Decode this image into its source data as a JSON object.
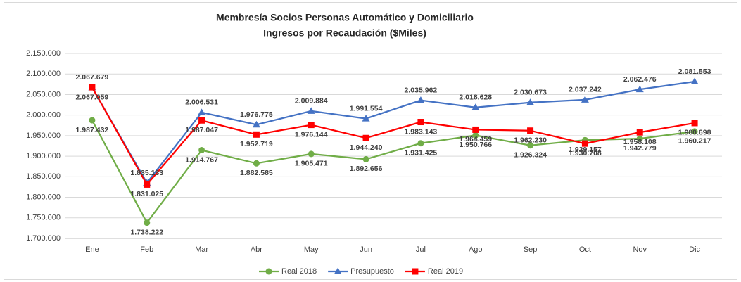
{
  "chart_data": {
    "type": "line",
    "title": "Membresía Socios Personas Automático y Domiciliario",
    "subtitle": "Ingresos por Recaudación ($Miles)",
    "categories": [
      "Ene",
      "Feb",
      "Mar",
      "Abr",
      "May",
      "Jun",
      "Jul",
      "Ago",
      "Sep",
      "Oct",
      "Nov",
      "Dic"
    ],
    "series": [
      {
        "name": "Real 2018",
        "color": "#70ad47",
        "marker": "circle",
        "values": [
          1987432,
          1738222,
          1914767,
          1882585,
          1905471,
          1892656,
          1931425,
          1950766,
          1926324,
          1939157,
          1942779,
          1960217
        ],
        "value_labels": [
          "1.987.432",
          "1.738.222",
          "1.914.767",
          "1.882.585",
          "1.905.471",
          "1.892.656",
          "1.931.425",
          "1.950.766",
          "1.926.324",
          "1.939.157",
          "1.942.779",
          "1.960.217"
        ]
      },
      {
        "name": "Presupuesto",
        "color": "#4472c4",
        "marker": "triangle",
        "values": [
          2067059,
          1835133,
          2006531,
          1976775,
          2009884,
          1991554,
          2035962,
          2018628,
          2030673,
          2037242,
          2062476,
          2081553
        ],
        "value_labels": [
          "2.067.059",
          "1.835.133",
          "2.006.531",
          "1.976.775",
          "2.009.884",
          "1.991.554",
          "2.035.962",
          "2.018.628",
          "2.030.673",
          "2.037.242",
          "2.062.476",
          "2.081.553"
        ]
      },
      {
        "name": "Real 2019",
        "color": "#ff0000",
        "marker": "square",
        "values": [
          2067679,
          1831025,
          1987047,
          1952719,
          1976144,
          1944240,
          1983143,
          1964459,
          1962230,
          1930708,
          1958108,
          1980698
        ],
        "value_labels": [
          "2.067.679",
          "1.831.025",
          "1.987.047",
          "1.952.719",
          "1.976.144",
          "1.944.240",
          "1.983.143",
          "1.964.459",
          "1.962.230",
          "1.930.708",
          "1.958.108",
          "1.980.698"
        ]
      }
    ],
    "ylim": [
      1700000,
      2150000
    ],
    "yticks": [
      {
        "value": 1700000,
        "label": "1.700.000"
      },
      {
        "value": 1750000,
        "label": "1.750.000"
      },
      {
        "value": 1800000,
        "label": "1.800.000"
      },
      {
        "value": 1850000,
        "label": "1.850.000"
      },
      {
        "value": 1900000,
        "label": "1.900.000"
      },
      {
        "value": 1950000,
        "label": "1.950.000"
      },
      {
        "value": 2000000,
        "label": "2.000.000"
      },
      {
        "value": 2050000,
        "label": "2.050.000"
      },
      {
        "value": 2100000,
        "label": "2.100.000"
      },
      {
        "value": 2150000,
        "label": "2.150.000"
      }
    ],
    "grid": true,
    "legend": "bottom"
  }
}
